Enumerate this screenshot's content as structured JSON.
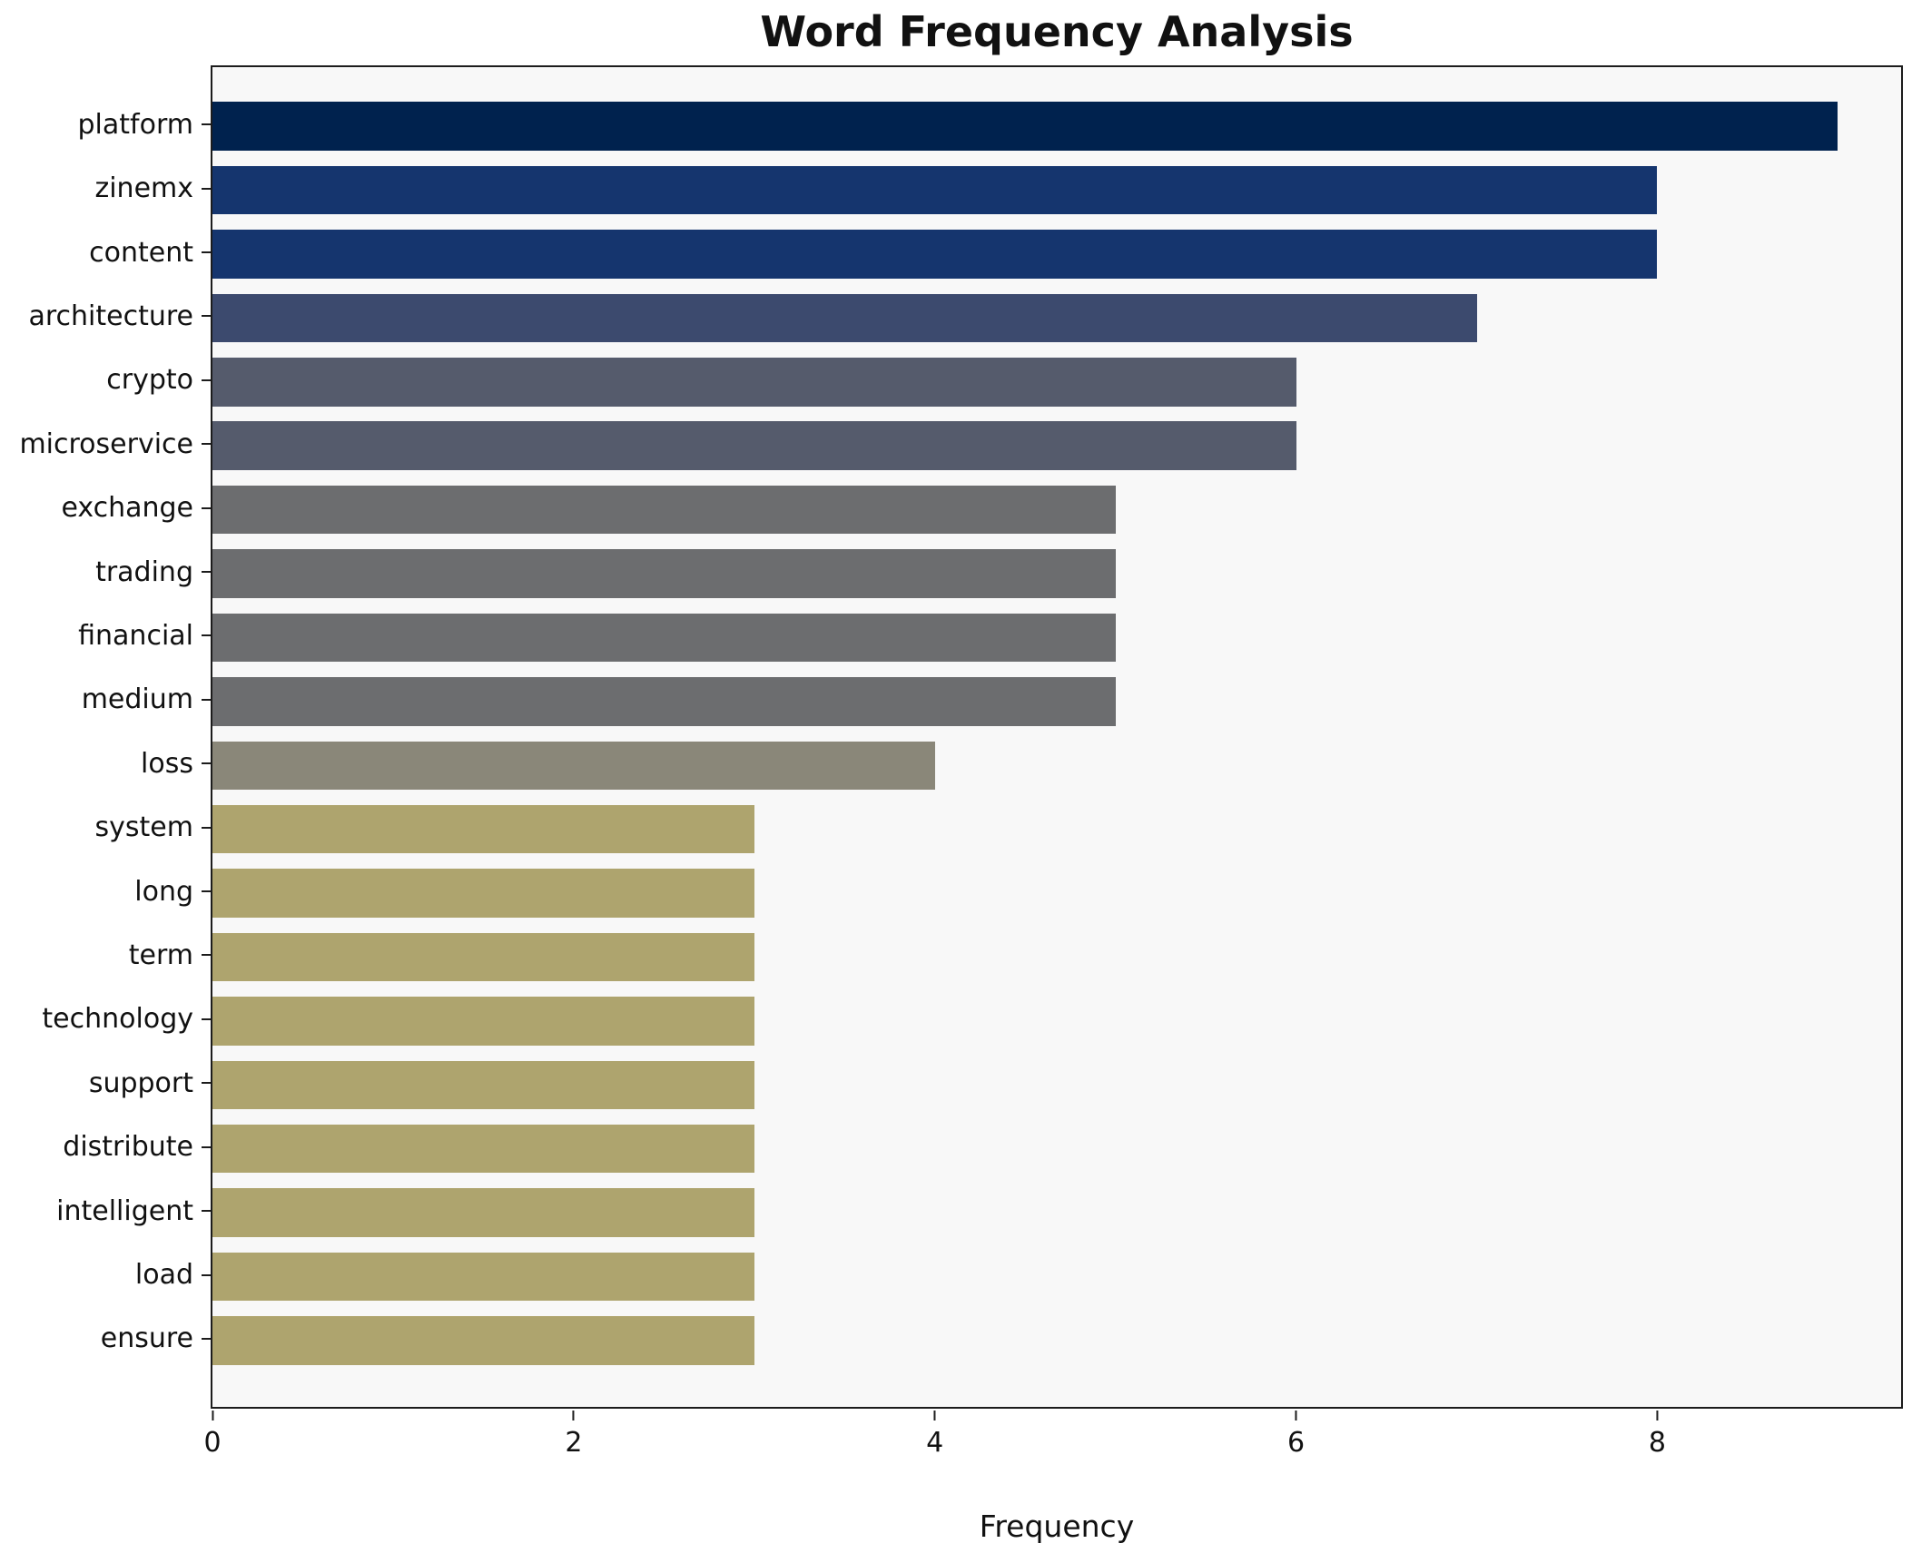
{
  "chart_data": {
    "type": "bar",
    "orientation": "horizontal",
    "title": "Word Frequency Analysis",
    "xlabel": "Frequency",
    "ylabel": "",
    "xlim": [
      0,
      9.35
    ],
    "x_ticks": [
      0,
      2,
      4,
      6,
      8
    ],
    "grid": false,
    "legend": false,
    "categories": [
      "platform",
      "zinemx",
      "content",
      "architecture",
      "crypto",
      "microservice",
      "exchange",
      "trading",
      "financial",
      "medium",
      "loss",
      "system",
      "long",
      "term",
      "technology",
      "support",
      "distribute",
      "intelligent",
      "load",
      "ensure"
    ],
    "values": [
      9,
      8,
      8,
      7,
      6,
      6,
      5,
      5,
      5,
      5,
      4,
      3,
      3,
      3,
      3,
      3,
      3,
      3,
      3,
      3
    ],
    "bar_colors": [
      "#00224e",
      "#15356e",
      "#15356e",
      "#3c4a6e",
      "#555b6c",
      "#555b6c",
      "#6c6d6f",
      "#6c6d6f",
      "#6c6d6f",
      "#6c6d6f",
      "#8a8779",
      "#aea46e",
      "#aea46e",
      "#aea46e",
      "#aea46e",
      "#aea46e",
      "#aea46e",
      "#aea46e",
      "#aea46e",
      "#aea46e"
    ],
    "plot_background": "#f8f8f8",
    "figure_background": "#ffffff",
    "spine_color": "#1c1c1c"
  }
}
